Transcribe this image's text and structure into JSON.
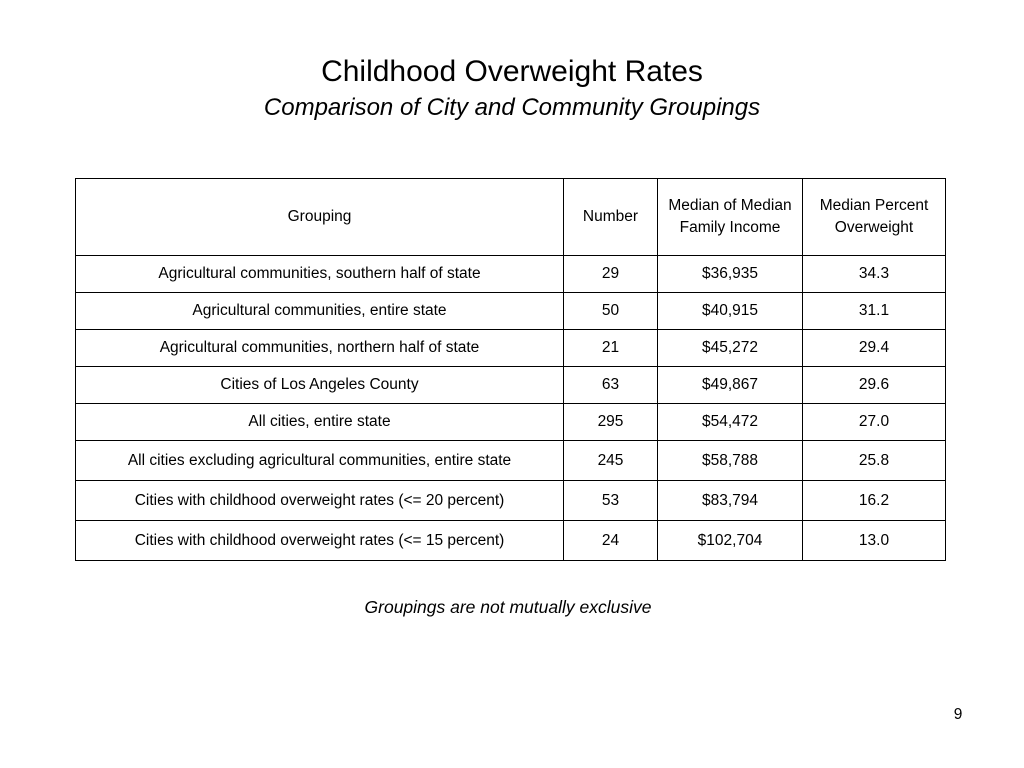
{
  "slide": {
    "title": "Childhood Overweight Rates",
    "subtitle": "Comparison of City and Community Groupings",
    "footnote": "Groupings are not mutually exclusive",
    "page_number": "9"
  },
  "table": {
    "headers": [
      "Grouping",
      "Number",
      "Median of Median Family Income",
      "Median Percent Overweight"
    ],
    "rows": [
      [
        "Agricultural communities, southern half of state",
        "29",
        "$36,935",
        "34.3"
      ],
      [
        "Agricultural communities, entire state",
        "50",
        "$40,915",
        "31.1"
      ],
      [
        "Agricultural communities, northern half of state",
        "21",
        "$45,272",
        "29.4"
      ],
      [
        "Cities of Los Angeles County",
        "63",
        "$49,867",
        "29.6"
      ],
      [
        "All cities, entire state",
        "295",
        "$54,472",
        "27.0"
      ],
      [
        "All cities excluding agricultural communities, entire state",
        "245",
        "$58,788",
        "25.8"
      ],
      [
        "Cities with childhood overweight rates (<= 20 percent)",
        "53",
        "$83,794",
        "16.2"
      ],
      [
        "Cities with childhood overweight rates (<= 15 percent)",
        "24",
        "$102,704",
        "13.0"
      ]
    ]
  }
}
